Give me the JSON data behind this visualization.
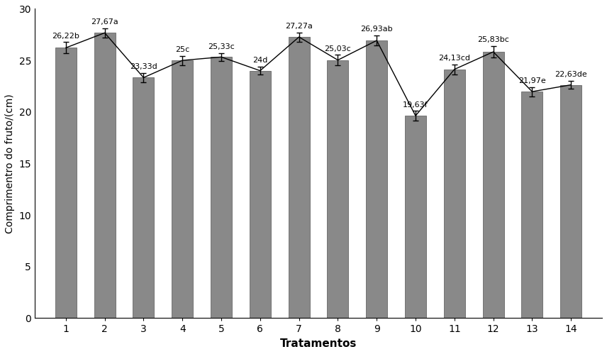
{
  "categories": [
    "1",
    "2",
    "3",
    "4",
    "5",
    "6",
    "7",
    "8",
    "9",
    "10",
    "11",
    "12",
    "13",
    "14"
  ],
  "values": [
    26.22,
    27.67,
    23.33,
    25.0,
    25.33,
    24.0,
    27.27,
    25.03,
    26.93,
    19.63,
    24.13,
    25.83,
    21.97,
    22.63
  ],
  "labels": [
    "26,22b",
    "27,67a",
    "23,33d",
    "25c",
    "25,33c",
    "24d",
    "27,27a",
    "25,03c",
    "26,93ab",
    "19,63f",
    "24,13cd",
    "25,83bc",
    "21,97e",
    "22,63de"
  ],
  "errors": [
    0.55,
    0.45,
    0.45,
    0.45,
    0.4,
    0.4,
    0.45,
    0.5,
    0.48,
    0.48,
    0.48,
    0.55,
    0.45,
    0.38
  ],
  "bar_color": "#898989",
  "bar_edge_color": "#555555",
  "line_color": "#000000",
  "ylabel": "Comprimentro do fruto/(cm)",
  "xlabel": "Tratamentos",
  "ylim": [
    0,
    30
  ],
  "yticks": [
    0,
    5,
    10,
    15,
    20,
    25,
    30
  ],
  "background_color": "#ffffff",
  "figsize": [
    8.56,
    4.99
  ],
  "dpi": 100,
  "bar_width": 0.55,
  "label_fontsize": 8.0,
  "axis_fontsize": 10,
  "xlabel_fontsize": 11
}
